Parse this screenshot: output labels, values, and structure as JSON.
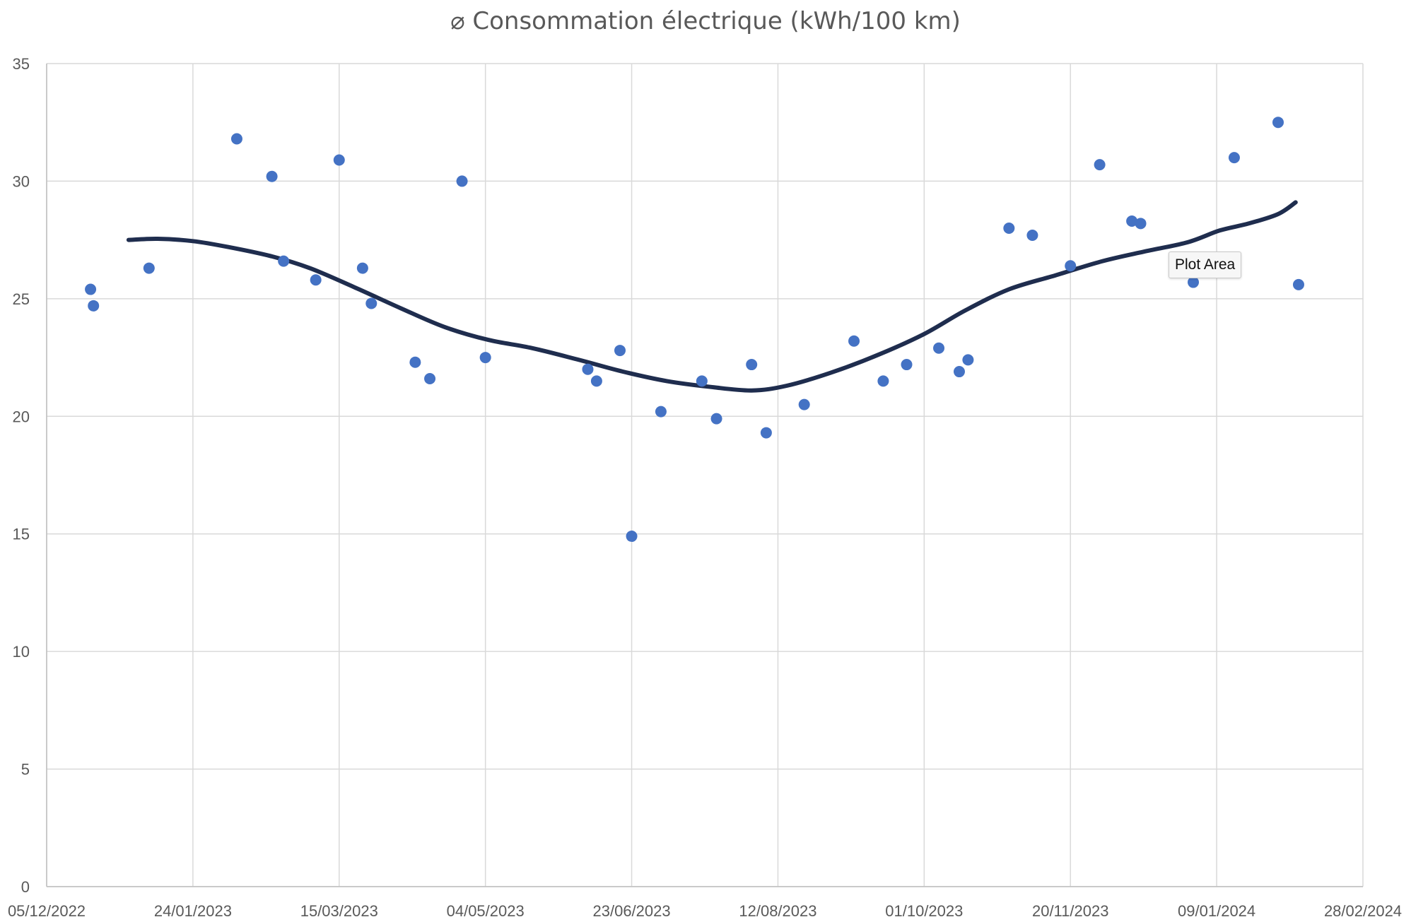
{
  "chart_data": {
    "type": "scatter",
    "title": "⌀ Consommation électrique (kWh/100 km)",
    "xlabel": "",
    "ylabel": "",
    "xlim": [
      "2022-12-05",
      "2024-02-28"
    ],
    "ylim": [
      0,
      35
    ],
    "x_ticks": [
      "05/12/2022",
      "24/01/2023",
      "15/03/2023",
      "04/05/2023",
      "23/06/2023",
      "12/08/2023",
      "01/10/2023",
      "20/11/2023",
      "09/01/2024",
      "28/02/2024"
    ],
    "y_ticks": [
      0,
      5,
      10,
      15,
      20,
      25,
      30,
      35
    ],
    "grid": true,
    "legend": "none",
    "series": [
      {
        "type": "scatter",
        "color": "#4472c4",
        "points": [
          {
            "x": "2022-12-20",
            "y": 25.4
          },
          {
            "x": "2022-12-21",
            "y": 24.7
          },
          {
            "x": "2023-01-09",
            "y": 26.3
          },
          {
            "x": "2023-02-08",
            "y": 31.8
          },
          {
            "x": "2023-02-20",
            "y": 30.2
          },
          {
            "x": "2023-02-24",
            "y": 26.6
          },
          {
            "x": "2023-03-07",
            "y": 25.8
          },
          {
            "x": "2023-03-15",
            "y": 30.9
          },
          {
            "x": "2023-03-23",
            "y": 26.3
          },
          {
            "x": "2023-03-26",
            "y": 24.8
          },
          {
            "x": "2023-04-10",
            "y": 22.3
          },
          {
            "x": "2023-04-15",
            "y": 21.6
          },
          {
            "x": "2023-04-26",
            "y": 30.0
          },
          {
            "x": "2023-05-04",
            "y": 22.5
          },
          {
            "x": "2023-06-08",
            "y": 22.0
          },
          {
            "x": "2023-06-11",
            "y": 21.5
          },
          {
            "x": "2023-06-19",
            "y": 22.8
          },
          {
            "x": "2023-06-23",
            "y": 14.9
          },
          {
            "x": "2023-07-03",
            "y": 20.2
          },
          {
            "x": "2023-07-17",
            "y": 21.5
          },
          {
            "x": "2023-07-22",
            "y": 19.9
          },
          {
            "x": "2023-08-03",
            "y": 22.2
          },
          {
            "x": "2023-08-08",
            "y": 19.3
          },
          {
            "x": "2023-08-21",
            "y": 20.5
          },
          {
            "x": "2023-09-07",
            "y": 23.2
          },
          {
            "x": "2023-09-17",
            "y": 21.5
          },
          {
            "x": "2023-09-25",
            "y": 22.2
          },
          {
            "x": "2023-10-06",
            "y": 22.9
          },
          {
            "x": "2023-10-13",
            "y": 21.9
          },
          {
            "x": "2023-10-16",
            "y": 22.4
          },
          {
            "x": "2023-10-30",
            "y": 28.0
          },
          {
            "x": "2023-11-07",
            "y": 27.7
          },
          {
            "x": "2023-11-20",
            "y": 26.4
          },
          {
            "x": "2023-11-30",
            "y": 30.7
          },
          {
            "x": "2023-12-11",
            "y": 28.3
          },
          {
            "x": "2023-12-14",
            "y": 28.2
          },
          {
            "x": "2024-01-01",
            "y": 25.7
          },
          {
            "x": "2024-01-15",
            "y": 31.0
          },
          {
            "x": "2024-01-30",
            "y": 32.5
          },
          {
            "x": "2024-02-06",
            "y": 25.6
          }
        ]
      },
      {
        "type": "line",
        "color": "#1f2d4e",
        "smooth": true,
        "points": [
          {
            "x": "2023-01-02",
            "y": 27.5
          },
          {
            "x": "2023-01-12",
            "y": 27.55
          },
          {
            "x": "2023-01-24",
            "y": 27.45
          },
          {
            "x": "2023-02-05",
            "y": 27.2
          },
          {
            "x": "2023-02-20",
            "y": 26.8
          },
          {
            "x": "2023-03-05",
            "y": 26.3
          },
          {
            "x": "2023-03-20",
            "y": 25.5
          },
          {
            "x": "2023-04-05",
            "y": 24.6
          },
          {
            "x": "2023-04-20",
            "y": 23.8
          },
          {
            "x": "2023-05-05",
            "y": 23.25
          },
          {
            "x": "2023-05-20",
            "y": 22.9
          },
          {
            "x": "2023-06-05",
            "y": 22.4
          },
          {
            "x": "2023-06-20",
            "y": 21.9
          },
          {
            "x": "2023-07-05",
            "y": 21.5
          },
          {
            "x": "2023-07-20",
            "y": 21.25
          },
          {
            "x": "2023-08-03",
            "y": 21.1
          },
          {
            "x": "2023-08-15",
            "y": 21.3
          },
          {
            "x": "2023-08-30",
            "y": 21.85
          },
          {
            "x": "2023-09-15",
            "y": 22.6
          },
          {
            "x": "2023-10-01",
            "y": 23.5
          },
          {
            "x": "2023-10-15",
            "y": 24.5
          },
          {
            "x": "2023-10-30",
            "y": 25.4
          },
          {
            "x": "2023-11-15",
            "y": 26.0
          },
          {
            "x": "2023-12-01",
            "y": 26.6
          },
          {
            "x": "2023-12-15",
            "y": 27.0
          },
          {
            "x": "2023-12-30",
            "y": 27.4
          },
          {
            "x": "2024-01-10",
            "y": 27.9
          },
          {
            "x": "2024-01-20",
            "y": 28.2
          },
          {
            "x": "2024-01-30",
            "y": 28.6
          },
          {
            "x": "2024-02-05",
            "y": 29.1
          }
        ]
      }
    ]
  },
  "tooltip": {
    "label": "Plot Area"
  }
}
